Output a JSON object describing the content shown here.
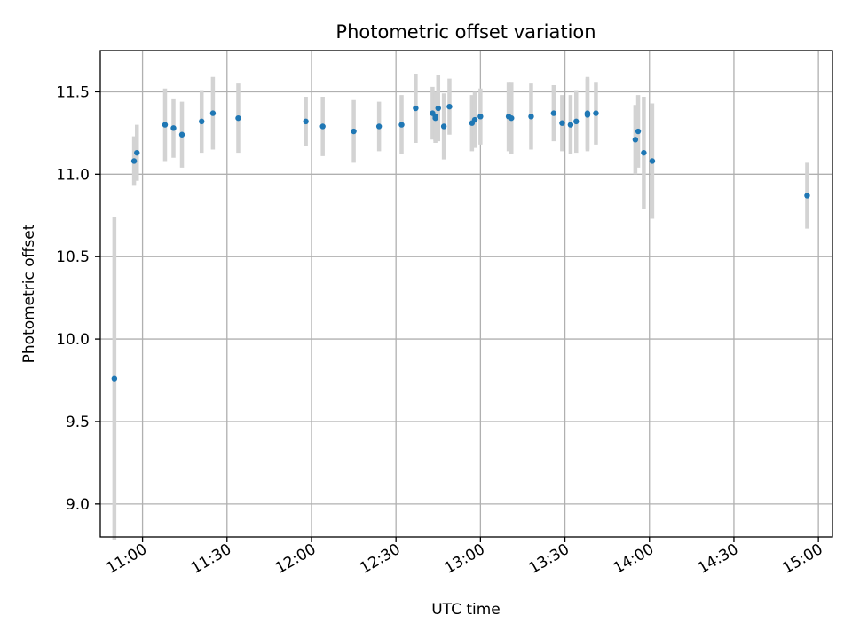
{
  "chart_data": {
    "type": "scatter",
    "title": "Photometric offset variation",
    "xlabel": "UTC time",
    "ylabel": "Photometric offset",
    "xlim": [
      "10:45",
      "15:05"
    ],
    "ylim": [
      8.8,
      11.75
    ],
    "x_ticks": [
      "11:00",
      "11:30",
      "12:00",
      "12:30",
      "13:00",
      "13:30",
      "14:00",
      "14:30",
      "15:00"
    ],
    "y_ticks": [
      9.0,
      9.5,
      10.0,
      10.5,
      11.0,
      11.5
    ],
    "grid": true,
    "point_color": "#1f77b4",
    "errorbar_color": "#d3d3d3",
    "series": [
      {
        "points": [
          {
            "x": "10:50",
            "y": 9.76,
            "err": 0.98
          },
          {
            "x": "10:57",
            "y": 11.08,
            "err": 0.15
          },
          {
            "x": "10:58",
            "y": 11.13,
            "err": 0.17
          },
          {
            "x": "11:08",
            "y": 11.3,
            "err": 0.22
          },
          {
            "x": "11:11",
            "y": 11.28,
            "err": 0.18
          },
          {
            "x": "11:14",
            "y": 11.24,
            "err": 0.2
          },
          {
            "x": "11:21",
            "y": 11.32,
            "err": 0.19
          },
          {
            "x": "11:25",
            "y": 11.37,
            "err": 0.22
          },
          {
            "x": "11:34",
            "y": 11.34,
            "err": 0.21
          },
          {
            "x": "11:58",
            "y": 11.32,
            "err": 0.15
          },
          {
            "x": "12:04",
            "y": 11.29,
            "err": 0.18
          },
          {
            "x": "12:15",
            "y": 11.26,
            "err": 0.19
          },
          {
            "x": "12:24",
            "y": 11.29,
            "err": 0.15
          },
          {
            "x": "12:32",
            "y": 11.3,
            "err": 0.18
          },
          {
            "x": "12:37",
            "y": 11.4,
            "err": 0.21
          },
          {
            "x": "12:43",
            "y": 11.37,
            "err": 0.16
          },
          {
            "x": "12:44",
            "y": 11.34,
            "err": 0.15
          },
          {
            "x": "12:44",
            "y": 11.35,
            "err": 0.15
          },
          {
            "x": "12:45",
            "y": 11.4,
            "err": 0.2
          },
          {
            "x": "12:47",
            "y": 11.29,
            "err": 0.2
          },
          {
            "x": "12:49",
            "y": 11.41,
            "err": 0.17
          },
          {
            "x": "12:57",
            "y": 11.31,
            "err": 0.17
          },
          {
            "x": "12:58",
            "y": 11.33,
            "err": 0.17
          },
          {
            "x": "13:00",
            "y": 11.35,
            "err": 0.17
          },
          {
            "x": "13:10",
            "y": 11.35,
            "err": 0.21
          },
          {
            "x": "13:11",
            "y": 11.34,
            "err": 0.22
          },
          {
            "x": "13:18",
            "y": 11.35,
            "err": 0.2
          },
          {
            "x": "13:26",
            "y": 11.37,
            "err": 0.17
          },
          {
            "x": "13:29",
            "y": 11.31,
            "err": 0.17
          },
          {
            "x": "13:32",
            "y": 11.3,
            "err": 0.18
          },
          {
            "x": "13:34",
            "y": 11.32,
            "err": 0.19
          },
          {
            "x": "13:38",
            "y": 11.36,
            "err": 0.22
          },
          {
            "x": "13:38",
            "y": 11.37,
            "err": 0.22
          },
          {
            "x": "13:41",
            "y": 11.37,
            "err": 0.19
          },
          {
            "x": "13:55",
            "y": 11.21,
            "err": 0.21
          },
          {
            "x": "13:56",
            "y": 11.26,
            "err": 0.22
          },
          {
            "x": "13:58",
            "y": 11.13,
            "err": 0.34
          },
          {
            "x": "14:01",
            "y": 11.08,
            "err": 0.35
          },
          {
            "x": "14:56",
            "y": 10.87,
            "err": 0.2
          }
        ]
      }
    ]
  }
}
